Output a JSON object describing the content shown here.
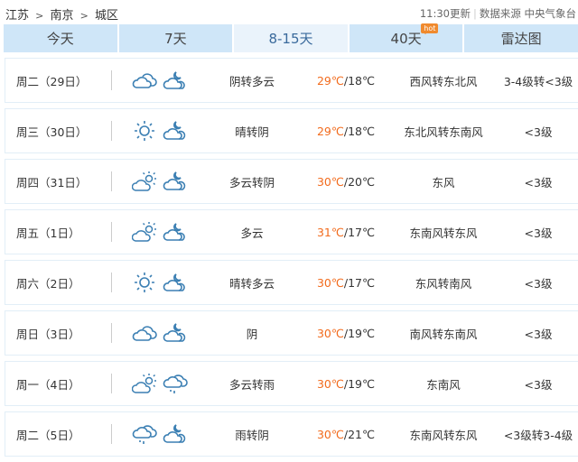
{
  "breadcrumb": [
    "江苏",
    "南京",
    "城区"
  ],
  "breadcrumb_sep": ">",
  "update_time": "11:30更新",
  "source": "数据来源 中央气象台",
  "tabs": [
    {
      "label": "今天",
      "active": false
    },
    {
      "label": "7天",
      "active": false
    },
    {
      "label": "8-15天",
      "active": true
    },
    {
      "label": "40天",
      "active": false,
      "badge": "hot"
    },
    {
      "label": "雷达图",
      "active": false
    }
  ],
  "colors": {
    "accent_temp": "#f26b1d",
    "tab_bg": "#cfe6f8",
    "tab_active_bg": "#eaf3fb",
    "icon": "#3b7fb3"
  },
  "forecast": [
    {
      "day": "周二（29日）",
      "icon_day": "cloudy",
      "icon_night": "cloudy-moon",
      "desc": "阴转多云",
      "high": "29℃",
      "low": "/18℃",
      "wind": "西风转东北风",
      "level": "3-4级转<3级"
    },
    {
      "day": "周三（30日）",
      "icon_day": "sunny",
      "icon_night": "cloudy-moon-filled",
      "desc": "晴转阴",
      "high": "29℃",
      "low": "/18℃",
      "wind": "东北风转东南风",
      "level": "<3级"
    },
    {
      "day": "周四（31日）",
      "icon_day": "partly-cloudy",
      "icon_night": "cloudy-moon-filled",
      "desc": "多云转阴",
      "high": "30℃",
      "low": "/20℃",
      "wind": "东风",
      "level": "<3级"
    },
    {
      "day": "周五（1日）",
      "icon_day": "partly-cloudy",
      "icon_night": "cloudy-moon",
      "desc": "多云",
      "high": "31℃",
      "low": "/17℃",
      "wind": "东南风转东风",
      "level": "<3级"
    },
    {
      "day": "周六（2日）",
      "icon_day": "sunny",
      "icon_night": "cloudy-moon",
      "desc": "晴转多云",
      "high": "30℃",
      "low": "/17℃",
      "wind": "东风转南风",
      "level": "<3级"
    },
    {
      "day": "周日（3日）",
      "icon_day": "cloudy",
      "icon_night": "cloudy-moon-filled",
      "desc": "阴",
      "high": "30℃",
      "low": "/19℃",
      "wind": "南风转东南风",
      "level": "<3级"
    },
    {
      "day": "周一（4日）",
      "icon_day": "partly-cloudy",
      "icon_night": "rain",
      "desc": "多云转雨",
      "high": "30℃",
      "low": "/19℃",
      "wind": "东南风",
      "level": "<3级"
    },
    {
      "day": "周二（5日）",
      "icon_day": "rain",
      "icon_night": "cloudy-moon-filled",
      "desc": "雨转阴",
      "high": "30℃",
      "low": "/21℃",
      "wind": "东南风转东风",
      "level": "<3级转3-4级"
    }
  ]
}
